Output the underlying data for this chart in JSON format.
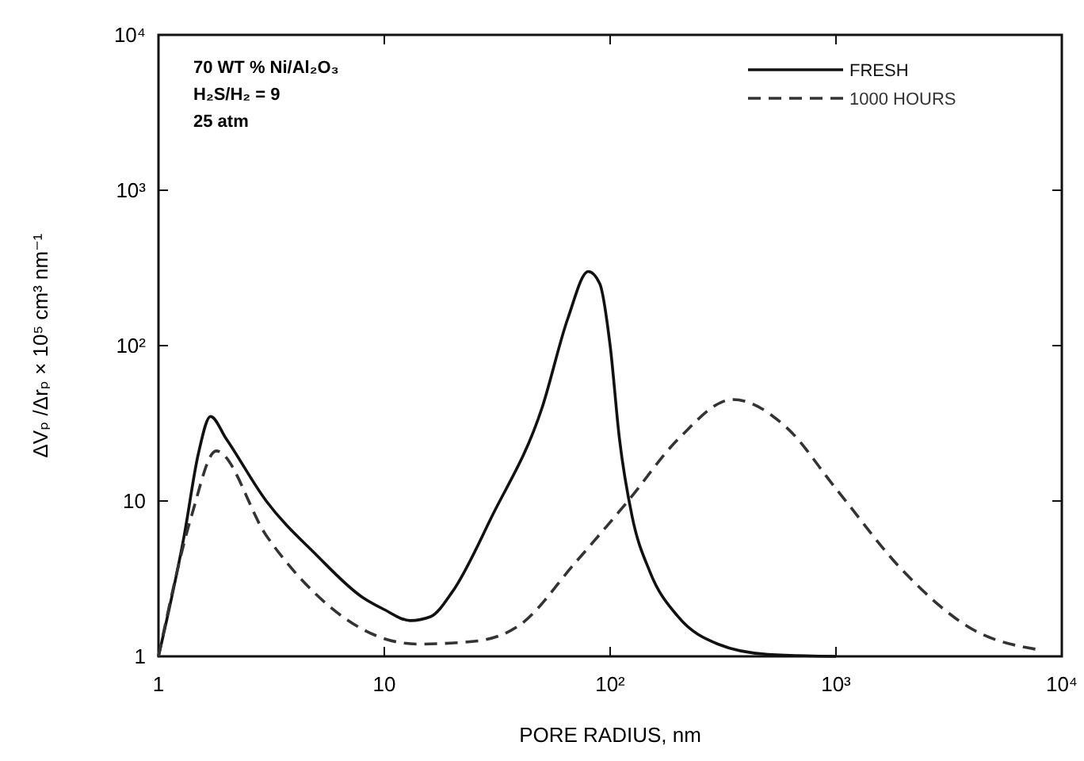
{
  "chart_data": {
    "type": "line",
    "xlabel": "PORE RADIUS, nm",
    "ylabel": "ΔVₚ /Δrₚ × 10⁵ cm³ nm⁻¹",
    "log": "xy",
    "legend": "top right",
    "grid": false,
    "xlim": [
      1,
      10000
    ],
    "ylim": [
      1,
      10000
    ],
    "xticks": [
      1,
      10,
      {
        "value": 100,
        "label": "10²"
      },
      {
        "value": 1000,
        "label": "10³"
      },
      {
        "value": 10000,
        "label": "10⁴"
      }
    ],
    "yticks": [
      1,
      10,
      {
        "value": 100,
        "label": "10²"
      },
      {
        "value": 1000,
        "label": "10³"
      },
      {
        "value": 10000,
        "label": "10⁴"
      }
    ],
    "annotations": [
      "70 WT % Ni/Al₂O₃",
      "H₂S/H₂ = 9",
      "25 atm"
    ],
    "series": [
      {
        "name": "FRESH",
        "color": "#111111",
        "line_style": "solid",
        "x": [
          1,
          1.3,
          1.5,
          1.7,
          2,
          3,
          5,
          8,
          10,
          13,
          16,
          20,
          30,
          50,
          65,
          80,
          90,
          100,
          110,
          125,
          150,
          200,
          300,
          500,
          1000
        ],
        "values": [
          1,
          6,
          20,
          35,
          25,
          10,
          4.5,
          2.4,
          2,
          1.7,
          1.8,
          2.6,
          8,
          40,
          150,
          300,
          250,
          100,
          25,
          8,
          3.5,
          1.8,
          1.2,
          1.03,
          1
        ]
      },
      {
        "name": "1000 HOURS",
        "color": "#333333",
        "line_style": "dashed",
        "x": [
          1,
          1.4,
          1.8,
          3,
          5,
          10,
          14,
          25,
          40,
          70,
          120,
          200,
          350,
          600,
          1000,
          2000,
          4000,
          8000
        ],
        "values": [
          1,
          8,
          21,
          6,
          2.5,
          1.3,
          1.2,
          1.25,
          1.6,
          4,
          10,
          25,
          45,
          30,
          12,
          3.5,
          1.5,
          1.1
        ]
      }
    ]
  }
}
